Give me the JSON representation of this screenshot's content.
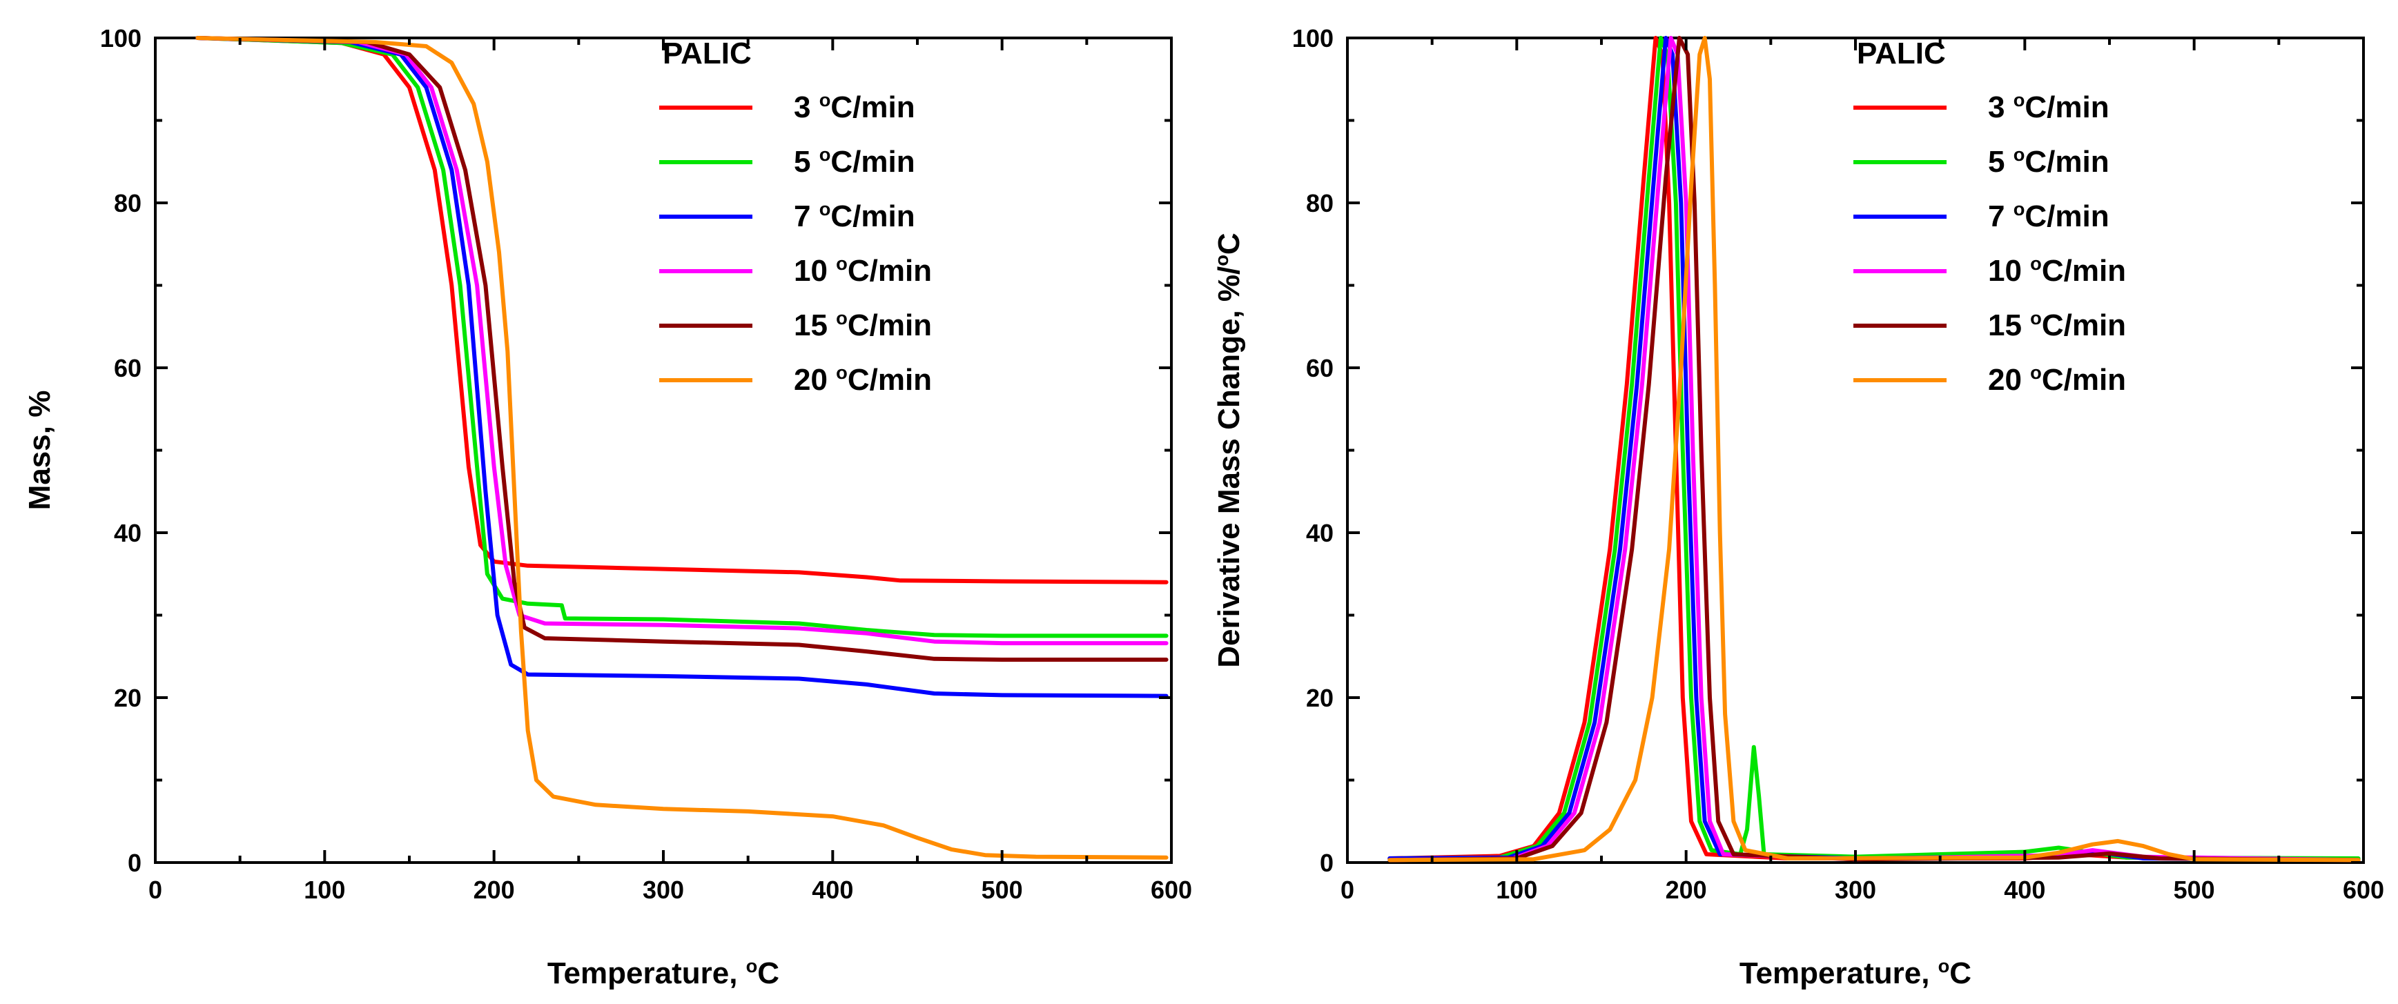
{
  "chart_data": [
    {
      "type": "line",
      "legend_title": "PALIC",
      "legend_position": "top-right",
      "grid": false,
      "xlabel": "Temperature, °C",
      "ylabel": "Mass, %",
      "xlim": [
        0,
        600
      ],
      "ylim": [
        0,
        100
      ],
      "x_ticks": [
        0,
        100,
        200,
        300,
        400,
        500,
        600
      ],
      "y_ticks": [
        0,
        20,
        40,
        60,
        80,
        100
      ],
      "series": [
        {
          "name": "3 °C/min",
          "color": "#ff0000",
          "points": [
            [
              25,
              100
            ],
            [
              110,
              99.4
            ],
            [
              135,
              98
            ],
            [
              150,
              94
            ],
            [
              165,
              84
            ],
            [
              175,
              70
            ],
            [
              185,
              48
            ],
            [
              192,
              38.5
            ],
            [
              200,
              36.5
            ],
            [
              220,
              36
            ],
            [
              300,
              35.6
            ],
            [
              380,
              35.2
            ],
            [
              420,
              34.6
            ],
            [
              440,
              34.2
            ],
            [
              500,
              34.1
            ],
            [
              597,
              34
            ]
          ]
        },
        {
          "name": "5 °C/min",
          "color": "#00e400",
          "points": [
            [
              25,
              100
            ],
            [
              110,
              99.4
            ],
            [
              140,
              98
            ],
            [
              155,
              94
            ],
            [
              170,
              84
            ],
            [
              180,
              70
            ],
            [
              190,
              48
            ],
            [
              196,
              35
            ],
            [
              205,
              32
            ],
            [
              220,
              31.4
            ],
            [
              240,
              31.2
            ],
            [
              242,
              29.6
            ],
            [
              300,
              29.5
            ],
            [
              380,
              29
            ],
            [
              420,
              28.2
            ],
            [
              460,
              27.6
            ],
            [
              500,
              27.5
            ],
            [
              597,
              27.5
            ]
          ]
        },
        {
          "name": "7 °C/min",
          "color": "#0000ff",
          "points": [
            [
              25,
              100
            ],
            [
              115,
              99.5
            ],
            [
              145,
              98
            ],
            [
              160,
              94
            ],
            [
              175,
              84
            ],
            [
              185,
              70
            ],
            [
              195,
              45
            ],
            [
              202,
              30
            ],
            [
              210,
              24
            ],
            [
              220,
              22.8
            ],
            [
              300,
              22.6
            ],
            [
              380,
              22.3
            ],
            [
              420,
              21.6
            ],
            [
              460,
              20.5
            ],
            [
              500,
              20.3
            ],
            [
              597,
              20.2
            ]
          ]
        },
        {
          "name": "10 °C/min",
          "color": "#ff00ff",
          "points": [
            [
              25,
              100
            ],
            [
              120,
              99.5
            ],
            [
              148,
              98
            ],
            [
              163,
              94
            ],
            [
              178,
              84
            ],
            [
              190,
              70
            ],
            [
              200,
              48
            ],
            [
              207,
              36
            ],
            [
              215,
              30
            ],
            [
              230,
              29
            ],
            [
              300,
              28.8
            ],
            [
              380,
              28.4
            ],
            [
              420,
              27.8
            ],
            [
              460,
              26.8
            ],
            [
              500,
              26.6
            ],
            [
              597,
              26.6
            ]
          ]
        },
        {
          "name": "15 °C/min",
          "color": "#8b0000",
          "points": [
            [
              25,
              100
            ],
            [
              125,
              99.5
            ],
            [
              150,
              98
            ],
            [
              168,
              94
            ],
            [
              183,
              84
            ],
            [
              195,
              70
            ],
            [
              205,
              48
            ],
            [
              212,
              34
            ],
            [
              218,
              28.5
            ],
            [
              230,
              27.2
            ],
            [
              300,
              26.8
            ],
            [
              380,
              26.4
            ],
            [
              420,
              25.6
            ],
            [
              460,
              24.7
            ],
            [
              500,
              24.6
            ],
            [
              597,
              24.6
            ]
          ]
        },
        {
          "name": "20 °C/min",
          "color": "#ff8c00",
          "points": [
            [
              25,
              100
            ],
            [
              130,
              99.5
            ],
            [
              160,
              99
            ],
            [
              175,
              97
            ],
            [
              188,
              92
            ],
            [
              196,
              85
            ],
            [
              203,
              74
            ],
            [
              208,
              62
            ],
            [
              212,
              45
            ],
            [
              216,
              28
            ],
            [
              220,
              16
            ],
            [
              225,
              10
            ],
            [
              235,
              8
            ],
            [
              260,
              7
            ],
            [
              300,
              6.5
            ],
            [
              350,
              6.2
            ],
            [
              400,
              5.6
            ],
            [
              430,
              4.5
            ],
            [
              450,
              3
            ],
            [
              470,
              1.6
            ],
            [
              490,
              0.9
            ],
            [
              520,
              0.7
            ],
            [
              597,
              0.6
            ]
          ]
        }
      ]
    },
    {
      "type": "line",
      "legend_title": "PALIC",
      "legend_position": "top-right",
      "grid": false,
      "xlabel": "Temperature, °C",
      "ylabel": "Derivative Mass Change, %/°C",
      "xlim": [
        0,
        600
      ],
      "ylim": [
        0,
        100
      ],
      "x_ticks": [
        0,
        100,
        200,
        300,
        400,
        500,
        600
      ],
      "y_ticks": [
        0,
        20,
        40,
        60,
        80,
        100
      ],
      "series": [
        {
          "name": "3 °C/min",
          "color": "#ff0000",
          "points": [
            [
              25,
              0.5
            ],
            [
              90,
              0.8
            ],
            [
              110,
              2
            ],
            [
              125,
              6
            ],
            [
              140,
              17
            ],
            [
              155,
              38
            ],
            [
              165,
              58
            ],
            [
              175,
              83
            ],
            [
              182,
              100
            ],
            [
              186,
              98
            ],
            [
              190,
              80
            ],
            [
              194,
              50
            ],
            [
              198,
              20
            ],
            [
              203,
              5
            ],
            [
              212,
              1
            ],
            [
              260,
              0.5
            ],
            [
              400,
              0.5
            ],
            [
              430,
              1
            ],
            [
              460,
              0.6
            ],
            [
              597,
              0.4
            ]
          ]
        },
        {
          "name": "5 °C/min",
          "color": "#00e400",
          "points": [
            [
              25,
              0.5
            ],
            [
              90,
              0.6
            ],
            [
              112,
              2
            ],
            [
              128,
              6
            ],
            [
              143,
              17
            ],
            [
              158,
              38
            ],
            [
              168,
              58
            ],
            [
              178,
              83
            ],
            [
              185,
              100
            ],
            [
              189,
              98
            ],
            [
              194,
              80
            ],
            [
              198,
              50
            ],
            [
              203,
              20
            ],
            [
              208,
              5
            ],
            [
              215,
              1.5
            ],
            [
              232,
              1
            ],
            [
              236,
              4
            ],
            [
              240,
              14
            ],
            [
              243,
              8
            ],
            [
              246,
              1
            ],
            [
              300,
              0.7
            ],
            [
              400,
              1.3
            ],
            [
              420,
              1.8
            ],
            [
              440,
              1.2
            ],
            [
              460,
              0.6
            ],
            [
              597,
              0.5
            ]
          ]
        },
        {
          "name": "7 °C/min",
          "color": "#0000ff",
          "points": [
            [
              25,
              0.5
            ],
            [
              95,
              0.6
            ],
            [
              115,
              2
            ],
            [
              131,
              6
            ],
            [
              146,
              17
            ],
            [
              161,
              38
            ],
            [
              171,
              58
            ],
            [
              181,
              83
            ],
            [
              188,
              100
            ],
            [
              192,
              98
            ],
            [
              197,
              80
            ],
            [
              201,
              50
            ],
            [
              206,
              20
            ],
            [
              211,
              5
            ],
            [
              220,
              1
            ],
            [
              300,
              0.5
            ],
            [
              420,
              0.8
            ],
            [
              445,
              1.2
            ],
            [
              470,
              0.5
            ],
            [
              597,
              0.3
            ]
          ]
        },
        {
          "name": "10 °C/min",
          "color": "#ff00ff",
          "points": [
            [
              25,
              0.3
            ],
            [
              98,
              0.5
            ],
            [
              118,
              2
            ],
            [
              134,
              6
            ],
            [
              149,
              17
            ],
            [
              164,
              38
            ],
            [
              174,
              58
            ],
            [
              184,
              83
            ],
            [
              191,
              100
            ],
            [
              195,
              98
            ],
            [
              200,
              80
            ],
            [
              204,
              50
            ],
            [
              209,
              20
            ],
            [
              214,
              5
            ],
            [
              222,
              1
            ],
            [
              300,
              0.4
            ],
            [
              420,
              0.9
            ],
            [
              440,
              1.5
            ],
            [
              470,
              0.7
            ],
            [
              597,
              0.3
            ]
          ]
        },
        {
          "name": "15 °C/min",
          "color": "#8b0000",
          "points": [
            [
              25,
              0.3
            ],
            [
              100,
              0.5
            ],
            [
              121,
              2
            ],
            [
              138,
              6
            ],
            [
              153,
              17
            ],
            [
              168,
              38
            ],
            [
              178,
              58
            ],
            [
              188,
              83
            ],
            [
              196,
              100
            ],
            [
              201,
              98
            ],
            [
              205,
              80
            ],
            [
              209,
              50
            ],
            [
              214,
              20
            ],
            [
              219,
              5
            ],
            [
              228,
              1
            ],
            [
              300,
              0.4
            ],
            [
              420,
              0.6
            ],
            [
              450,
              1.1
            ],
            [
              480,
              0.5
            ],
            [
              597,
              0.3
            ]
          ]
        },
        {
          "name": "20 °C/min",
          "color": "#ff8c00",
          "points": [
            [
              25,
              0.3
            ],
            [
              110,
              0.4
            ],
            [
              140,
              1.5
            ],
            [
              155,
              4
            ],
            [
              170,
              10
            ],
            [
              180,
              20
            ],
            [
              190,
              38
            ],
            [
              197,
              60
            ],
            [
              203,
              82
            ],
            [
              208,
              98
            ],
            [
              211,
              100
            ],
            [
              214,
              95
            ],
            [
              217,
              70
            ],
            [
              220,
              40
            ],
            [
              223,
              18
            ],
            [
              228,
              5
            ],
            [
              235,
              1.5
            ],
            [
              260,
              0.5
            ],
            [
              400,
              0.6
            ],
            [
              420,
              1.2
            ],
            [
              440,
              2.2
            ],
            [
              455,
              2.6
            ],
            [
              470,
              2
            ],
            [
              485,
              1
            ],
            [
              500,
              0.4
            ],
            [
              597,
              0.3
            ]
          ]
        }
      ]
    }
  ]
}
